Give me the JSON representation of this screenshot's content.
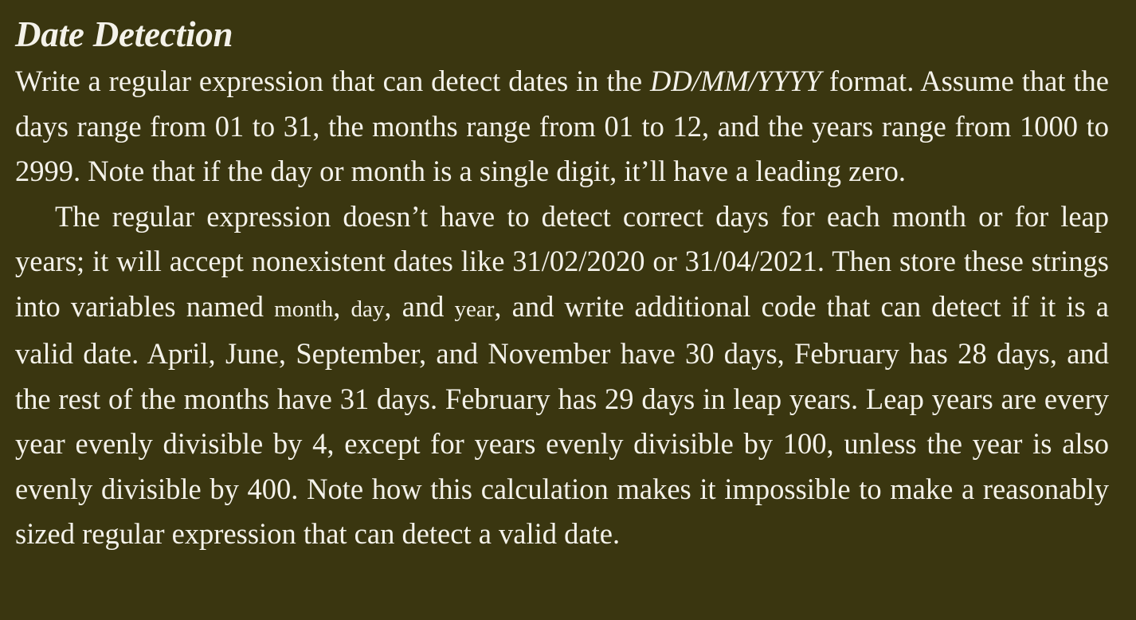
{
  "title": "Date Detection",
  "p1": {
    "before_format": "Write a regular expression that can detect dates in the ",
    "format": "DD/MM/YYYY",
    "after_format": " format. Assume that the days range from 01 to 31, the months range from 01 to 12, and the years range from 1000 to 2999. Note that if the day or month is a single digit, it’ll have a leading zero."
  },
  "p2": {
    "text_1": "The regular expression doesn’t have to detect correct days for each month or for leap years; it will accept nonexistent dates like 31/02/2020 or 31/04/2021. Then store these strings into variables named ",
    "var_month": "month",
    "sep_1": ", ",
    "var_day": "day",
    "sep_2": ", and ",
    "var_year": "year",
    "text_2": ", and write additional code that can detect if it is a valid date. April, June, September, and November have 30 days, February has 28 days, and the rest of the months have 31 days. February has 29 days in leap years. Leap years are every year evenly divisible by 4, except for years evenly divisible by 100, unless the year is also evenly divisible by 400. Note how this calculation makes it impossible to make a reasonably sized regular expression that can detect a valid date."
  }
}
